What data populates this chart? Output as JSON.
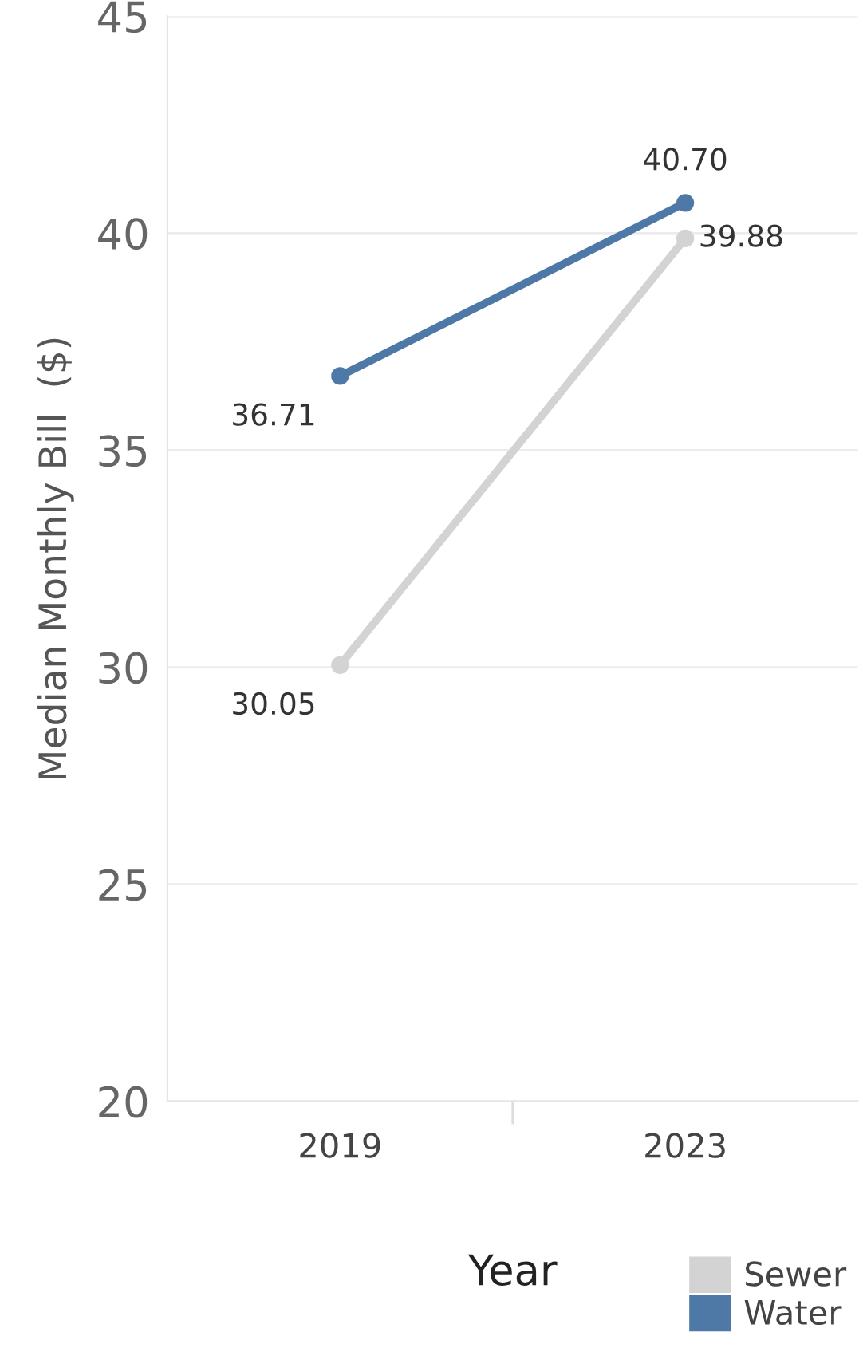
{
  "chart_data": {
    "type": "line",
    "xlabel": "Year",
    "ylabel": "Median Monthly Bill  ($)",
    "categories": [
      "2019",
      "2023"
    ],
    "series": [
      {
        "name": "Sewer",
        "color": "#d3d3d3",
        "values": [
          30.05,
          39.88
        ],
        "value_labels": [
          "30.05",
          "39.88"
        ]
      },
      {
        "name": "Water",
        "color": "#4e79a7",
        "values": [
          36.71,
          40.7
        ],
        "value_labels": [
          "36.71",
          "40.70"
        ]
      }
    ],
    "ylim": [
      20,
      45
    ],
    "yticks": [
      20,
      25,
      30,
      35,
      40,
      45
    ],
    "grid": "y",
    "legend": "bottom right",
    "marker": "circle",
    "line_style": "solid"
  }
}
